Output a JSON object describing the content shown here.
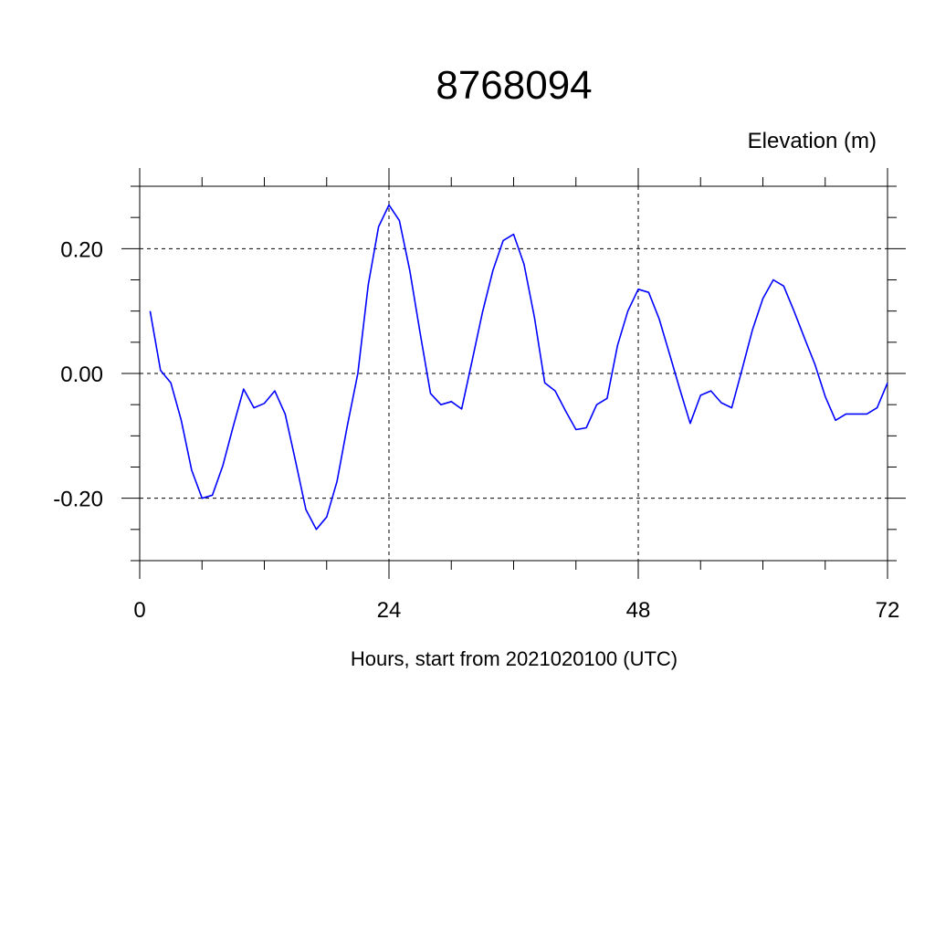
{
  "chart_data": {
    "type": "line",
    "title": "8768094",
    "ylabel": "Elevation (m)",
    "xlabel": "Hours, start from 2021020100 (UTC)",
    "xlim": [
      0,
      72
    ],
    "ylim": [
      -0.3,
      0.3
    ],
    "x_ticks": [
      0,
      24,
      48,
      72
    ],
    "x_tick_labels": [
      "0",
      "24",
      "48",
      "72"
    ],
    "y_ticks": [
      -0.2,
      0.0,
      0.2
    ],
    "y_tick_labels": [
      "-0.20",
      "0.00",
      "0.20"
    ],
    "grid": true,
    "series_color": "#0000ff",
    "series": [
      {
        "x": [
          1,
          2,
          3,
          4,
          5,
          6,
          7,
          8,
          9,
          10,
          11,
          12,
          13,
          14,
          15,
          16,
          17,
          18,
          19,
          20,
          21,
          22,
          23,
          24,
          25,
          26,
          27,
          28,
          29,
          30,
          31,
          32,
          33,
          34,
          35,
          36,
          37,
          38,
          39,
          40,
          41,
          42,
          43,
          44,
          45,
          46,
          47,
          48,
          49,
          50,
          51,
          52,
          53,
          54,
          55,
          56,
          57,
          58,
          59,
          60,
          61,
          62,
          63,
          64,
          65,
          66,
          67,
          68,
          69,
          70,
          71,
          72
        ],
        "values": [
          0.1,
          0.005,
          -0.015,
          -0.075,
          -0.155,
          -0.2,
          -0.195,
          -0.148,
          -0.085,
          -0.025,
          -0.055,
          -0.048,
          -0.028,
          -0.065,
          -0.14,
          -0.218,
          -0.25,
          -0.23,
          -0.173,
          -0.083,
          0.0,
          0.142,
          0.235,
          0.27,
          0.245,
          0.165,
          0.065,
          -0.032,
          -0.05,
          -0.045,
          -0.057,
          0.02,
          0.098,
          0.165,
          0.213,
          0.223,
          0.175,
          0.09,
          -0.015,
          -0.028,
          -0.06,
          -0.09,
          -0.087,
          -0.05,
          -0.04,
          0.045,
          0.1,
          0.135,
          0.13,
          0.088,
          0.032,
          -0.025,
          -0.08,
          -0.035,
          -0.028,
          -0.047,
          -0.055,
          0.007,
          0.07,
          0.12,
          0.15,
          0.14,
          0.1,
          0.057,
          0.015,
          -0.037,
          -0.075,
          -0.065,
          -0.065,
          -0.065,
          -0.055,
          -0.015
        ]
      }
    ]
  }
}
